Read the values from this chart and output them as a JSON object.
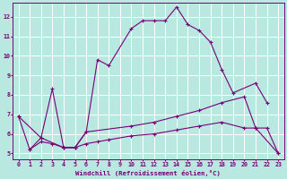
{
  "bg_color": "#b8e8e0",
  "grid_color": "#ffffff",
  "line_color": "#770077",
  "xlabel": "Windchill (Refroidissement éolien,°C)",
  "xlim": [
    -0.5,
    23.5
  ],
  "ylim": [
    4.7,
    12.7
  ],
  "yticks": [
    5,
    6,
    7,
    8,
    9,
    10,
    11,
    12
  ],
  "xticks": [
    0,
    1,
    2,
    3,
    4,
    5,
    6,
    7,
    8,
    9,
    10,
    11,
    12,
    13,
    14,
    15,
    16,
    17,
    18,
    19,
    20,
    21,
    22,
    23
  ],
  "series1_x": [
    0,
    1,
    2,
    3,
    4,
    5,
    6,
    7,
    8,
    10,
    11,
    12,
    13,
    14,
    15,
    16,
    17,
    18,
    19,
    21,
    22
  ],
  "series1_y": [
    6.9,
    5.2,
    5.8,
    8.3,
    5.3,
    5.3,
    6.1,
    9.8,
    9.5,
    11.4,
    11.8,
    11.8,
    11.8,
    12.5,
    11.6,
    11.3,
    10.7,
    9.3,
    8.1,
    8.6,
    7.6
  ],
  "series2_x": [
    0,
    2,
    4,
    5,
    6,
    10,
    12,
    14,
    16,
    18,
    20,
    21,
    23
  ],
  "series2_y": [
    6.9,
    5.8,
    5.3,
    5.3,
    6.1,
    6.4,
    6.6,
    6.9,
    7.2,
    7.6,
    7.9,
    6.3,
    5.0
  ],
  "series3_x": [
    1,
    2,
    3,
    4,
    5,
    6,
    7,
    8,
    10,
    12,
    14,
    16,
    18,
    20,
    21,
    22,
    23
  ],
  "series3_y": [
    5.2,
    5.6,
    5.5,
    5.3,
    5.3,
    5.5,
    5.6,
    5.7,
    5.9,
    6.0,
    6.2,
    6.4,
    6.6,
    6.3,
    6.3,
    6.3,
    5.0
  ]
}
